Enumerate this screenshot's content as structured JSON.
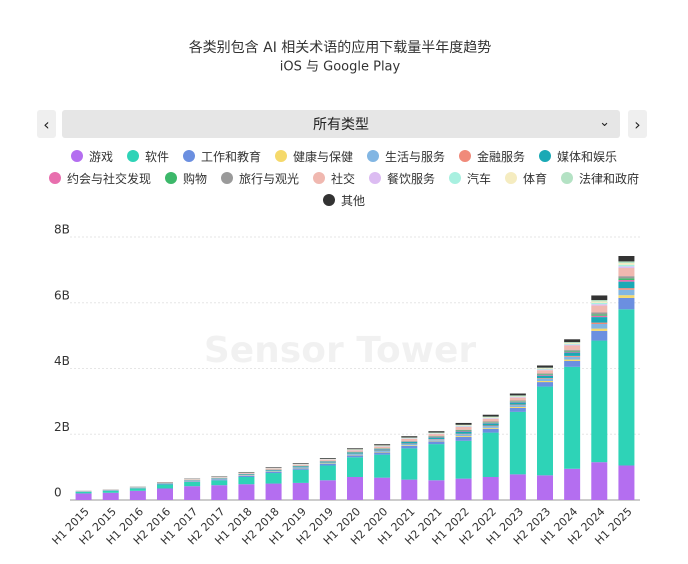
{
  "dropdown": {
    "selected": "所有类型"
  },
  "chart_data": {
    "type": "bar",
    "stacked": true,
    "title": "各类别包含 AI 相关术语的应用下载量半年度趋势",
    "subtitle": "iOS 与 Google Play",
    "watermark": "Sensor Tower",
    "categories": [
      "H1 2015",
      "H2 2015",
      "H1 2016",
      "H2 2016",
      "H1 2017",
      "H2 2017",
      "H1 2018",
      "H2 2018",
      "H1 2019",
      "H2 2019",
      "H1 2020",
      "H2 2020",
      "H1 2021",
      "H2 2021",
      "H1 2022",
      "H2 2022",
      "H1 2023",
      "H2 2023",
      "H1 2024",
      "H2 2024",
      "H1 2025"
    ],
    "ylim": [
      0,
      8
    ],
    "yticks": [
      0,
      {
        "value": 2,
        "label": "2B"
      },
      {
        "value": 4,
        "label": "4B"
      },
      {
        "value": 6,
        "label": "6B"
      },
      {
        "value": 8,
        "label": "8B"
      }
    ],
    "grid": true,
    "series": [
      {
        "name": "游戏",
        "color": "#b46ef0",
        "values": [
          0.2,
          0.22,
          0.28,
          0.35,
          0.42,
          0.45,
          0.48,
          0.5,
          0.52,
          0.6,
          0.7,
          0.68,
          0.62,
          0.6,
          0.65,
          0.7,
          0.78,
          0.75,
          0.95,
          1.15,
          1.05
        ]
      },
      {
        "name": "软件",
        "color": "#2ed3b7",
        "values": [
          0.05,
          0.06,
          0.07,
          0.12,
          0.13,
          0.15,
          0.22,
          0.32,
          0.4,
          0.45,
          0.6,
          0.7,
          0.95,
          1.1,
          1.15,
          1.35,
          1.9,
          2.7,
          3.1,
          3.7,
          4.75
        ]
      },
      {
        "name": "工作和教育",
        "color": "#6b8fe0",
        "values": [
          0.006,
          0.008,
          0.011,
          0.017,
          0.021,
          0.025,
          0.032,
          0.038,
          0.042,
          0.048,
          0.059,
          0.067,
          0.08,
          0.084,
          0.116,
          0.116,
          0.12,
          0.137,
          0.179,
          0.294,
          0.347
        ]
      },
      {
        "name": "健康与保健",
        "color": "#f5d96b",
        "values": [
          0.002,
          0.002,
          0.003,
          0.004,
          0.005,
          0.006,
          0.008,
          0.009,
          0.01,
          0.012,
          0.014,
          0.016,
          0.019,
          0.02,
          0.028,
          0.028,
          0.029,
          0.033,
          0.043,
          0.07,
          0.083
        ]
      },
      {
        "name": "生活与服务",
        "color": "#82b6e3",
        "values": [
          0.003,
          0.004,
          0.005,
          0.008,
          0.01,
          0.012,
          0.015,
          0.018,
          0.02,
          0.023,
          0.028,
          0.032,
          0.038,
          0.04,
          0.055,
          0.055,
          0.057,
          0.065,
          0.085,
          0.14,
          0.165
        ]
      },
      {
        "name": "金融服务",
        "color": "#f08a7a",
        "values": [
          0.001,
          0.001,
          0.002,
          0.002,
          0.003,
          0.004,
          0.005,
          0.005,
          0.006,
          0.007,
          0.008,
          0.01,
          0.011,
          0.012,
          0.017,
          0.017,
          0.017,
          0.02,
          0.026,
          0.042,
          0.05
        ]
      },
      {
        "name": "媒体和娱乐",
        "color": "#1aa9b5",
        "values": [
          0.004,
          0.005,
          0.006,
          0.01,
          0.012,
          0.014,
          0.018,
          0.022,
          0.024,
          0.028,
          0.034,
          0.038,
          0.046,
          0.048,
          0.066,
          0.066,
          0.068,
          0.078,
          0.102,
          0.168,
          0.198
        ]
      },
      {
        "name": "约会与社交发现",
        "color": "#e86fae",
        "values": [
          0.001,
          0.001,
          0.002,
          0.002,
          0.003,
          0.004,
          0.005,
          0.005,
          0.006,
          0.007,
          0.008,
          0.01,
          0.011,
          0.012,
          0.017,
          0.017,
          0.017,
          0.02,
          0.026,
          0.042,
          0.05
        ]
      },
      {
        "name": "购物",
        "color": "#3cb86a",
        "values": [
          0.001,
          0.001,
          0.002,
          0.002,
          0.003,
          0.004,
          0.005,
          0.005,
          0.006,
          0.007,
          0.008,
          0.01,
          0.011,
          0.012,
          0.017,
          0.017,
          0.017,
          0.02,
          0.026,
          0.042,
          0.05
        ]
      },
      {
        "name": "旅行与观光",
        "color": "#9a9a9a",
        "values": [
          0.001,
          0.002,
          0.002,
          0.003,
          0.004,
          0.005,
          0.006,
          0.007,
          0.008,
          0.009,
          0.011,
          0.013,
          0.015,
          0.016,
          0.022,
          0.022,
          0.023,
          0.026,
          0.034,
          0.056,
          0.066
        ]
      },
      {
        "name": "社交",
        "color": "#f0b8b0",
        "values": [
          0.005,
          0.006,
          0.008,
          0.012,
          0.015,
          0.018,
          0.023,
          0.027,
          0.03,
          0.035,
          0.042,
          0.048,
          0.057,
          0.06,
          0.083,
          0.083,
          0.086,
          0.098,
          0.128,
          0.21,
          0.248
        ]
      },
      {
        "name": "餐饮服务",
        "color": "#dcbcf2",
        "values": [
          0.001,
          0.001,
          0.002,
          0.002,
          0.003,
          0.004,
          0.005,
          0.005,
          0.006,
          0.007,
          0.008,
          0.01,
          0.011,
          0.012,
          0.017,
          0.017,
          0.017,
          0.02,
          0.026,
          0.042,
          0.05
        ]
      },
      {
        "name": "汽车",
        "color": "#a8f0e0",
        "values": [
          0.001,
          0.001,
          0.002,
          0.002,
          0.003,
          0.004,
          0.005,
          0.005,
          0.006,
          0.007,
          0.008,
          0.01,
          0.011,
          0.012,
          0.017,
          0.017,
          0.017,
          0.02,
          0.026,
          0.042,
          0.05
        ]
      },
      {
        "name": "体育",
        "color": "#f5ecc0",
        "values": [
          0.001,
          0.001,
          0.002,
          0.002,
          0.003,
          0.004,
          0.005,
          0.005,
          0.006,
          0.007,
          0.008,
          0.01,
          0.011,
          0.012,
          0.017,
          0.017,
          0.017,
          0.02,
          0.026,
          0.042,
          0.05
        ]
      },
      {
        "name": "法律和政府",
        "color": "#b4e2c4",
        "values": [
          0.001,
          0.001,
          0.002,
          0.002,
          0.003,
          0.004,
          0.005,
          0.005,
          0.006,
          0.007,
          0.008,
          0.01,
          0.011,
          0.012,
          0.017,
          0.017,
          0.017,
          0.02,
          0.026,
          0.042,
          0.05
        ]
      },
      {
        "name": "其他",
        "color": "#333333",
        "values": [
          0.003,
          0.004,
          0.005,
          0.008,
          0.01,
          0.012,
          0.015,
          0.018,
          0.02,
          0.023,
          0.028,
          0.032,
          0.038,
          0.04,
          0.055,
          0.055,
          0.057,
          0.065,
          0.085,
          0.14,
          0.165
        ]
      }
    ]
  }
}
